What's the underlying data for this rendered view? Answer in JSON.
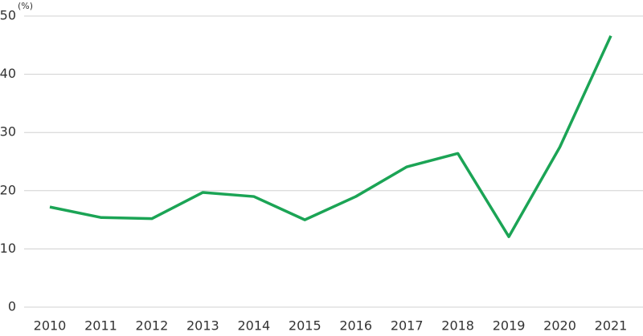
{
  "chart_data": {
    "type": "line",
    "y_label": "(%)",
    "categories": [
      "2010",
      "2011",
      "2012",
      "2013",
      "2014",
      "2015",
      "2016",
      "2017",
      "2018",
      "2019",
      "2020",
      "2021"
    ],
    "series": [
      {
        "color": "#1ba455",
        "values": [
          17.2,
          15.4,
          15.2,
          19.7,
          19.0,
          15.0,
          19.0,
          24.1,
          26.4,
          12.1,
          27.5,
          46.6
        ]
      }
    ],
    "ylim": [
      0,
      50
    ],
    "yticks": [
      0,
      10,
      20,
      30,
      40,
      50
    ],
    "grid": true
  }
}
